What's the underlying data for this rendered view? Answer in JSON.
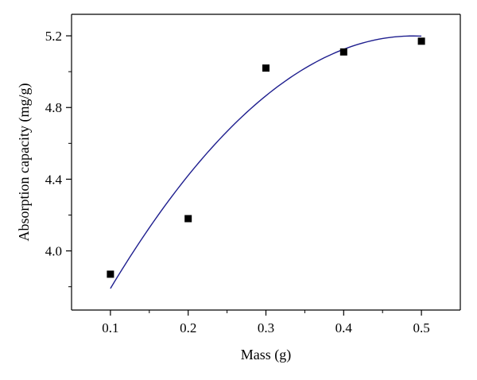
{
  "chart_data": {
    "type": "scatter",
    "title": "",
    "xlabel": "Mass (g)",
    "ylabel": "Absorption capacity (mg/g)",
    "xlim": [
      0.05,
      0.55
    ],
    "ylim": [
      3.67,
      5.32
    ],
    "x_ticks": [
      0.1,
      0.2,
      0.3,
      0.4,
      0.5
    ],
    "x_tick_labels": [
      "0.1",
      "0.2",
      "0.3",
      "0.4",
      "0.5"
    ],
    "y_ticks": [
      4.0,
      4.4,
      4.8,
      5.2
    ],
    "y_tick_labels": [
      "4.0",
      "4.4",
      "4.8",
      "5.2"
    ],
    "grid": false,
    "legend": "none",
    "series": [
      {
        "kind": "points",
        "marker": "square",
        "color": "#000000",
        "x": [
          0.1,
          0.2,
          0.3,
          0.4,
          0.5
        ],
        "y": [
          3.87,
          4.18,
          5.02,
          5.11,
          5.17
        ]
      },
      {
        "kind": "fit-curve",
        "color": "#1f1f8f",
        "x": [
          0.1,
          0.2,
          0.3,
          0.4,
          0.5
        ],
        "y": [
          3.79,
          4.42,
          4.87,
          5.12,
          5.2
        ]
      }
    ]
  }
}
